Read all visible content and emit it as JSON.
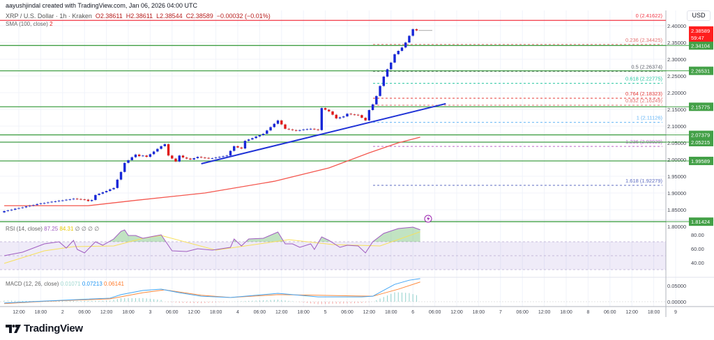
{
  "header": {
    "created_by": "aayushjindal created with TradingView.com, Jan 06, 2026 04:00 UTC",
    "symbol": "XRP / U.S. Dollar · 1h · Kraken",
    "open": "O2.38611",
    "high": "H2.38611",
    "low": "L2.38544",
    "close": "C2.38589",
    "change": "−0.00032 (−0.01%)",
    "sma_label": "SMA (100, close)",
    "sma_value": "2"
  },
  "currency_button": "USD",
  "brand": {
    "name": "TradingView",
    "logo": "TV"
  },
  "colors": {
    "up_candle": "#1727d8",
    "down_candle": "#e01818",
    "sma": "#f4574f",
    "trendline": "#1f32d6",
    "support": "#43a047",
    "last_price": "#ff1e1e",
    "rsi": "#a05cc0",
    "rsi_ma": "#f7e05a",
    "macd": "#42a5f5",
    "signal": "#ff8a3d"
  },
  "chart_data": {
    "type": "candlestick",
    "interval": "1h",
    "first_bar": "1 08:00",
    "closes": [
      1.846,
      1.848,
      1.85,
      1.853,
      1.855,
      1.857,
      1.86,
      1.862,
      1.864,
      1.867,
      1.869,
      1.87,
      1.872,
      1.874,
      1.875,
      1.877,
      1.878,
      1.88,
      1.881,
      1.883,
      1.882,
      1.881,
      1.88,
      1.876,
      1.879,
      1.894,
      1.898,
      1.902,
      1.906,
      1.911,
      1.915,
      1.94,
      1.963,
      1.99,
      1.998,
      2.007,
      2.015,
      2.01,
      2.012,
      2.008,
      2.016,
      2.024,
      2.032,
      2.04,
      2.046,
      2.012,
      2.003,
      1.994,
      2.012,
      2.006,
      2.003,
      2.0,
      2.004,
      2.008,
      2.006,
      2.005,
      2.004,
      2.004,
      2.006,
      2.008,
      2.01,
      2.012,
      2.026,
      2.04,
      2.036,
      2.033,
      2.056,
      2.06,
      2.064,
      2.069,
      2.073,
      2.077,
      2.087,
      2.097,
      2.107,
      2.117,
      2.105,
      2.092,
      2.09,
      2.088,
      2.086,
      2.088,
      2.09,
      2.091,
      2.092,
      2.09,
      2.088,
      2.154,
      2.149,
      2.144,
      2.134,
      2.123,
      2.126,
      2.129,
      2.137,
      2.135,
      2.134,
      2.133,
      2.125,
      2.117,
      2.148,
      2.165,
      2.19,
      2.22,
      2.248,
      2.27,
      2.29,
      2.315,
      2.325,
      2.335,
      2.35,
      2.37,
      2.39,
      2.386
    ],
    "first_open": 1.842,
    "last_price": {
      "value": "2.38589",
      "countdown": "59:47"
    },
    "sma_100": [
      [
        "1 08:00",
        1.862
      ],
      [
        "2 07:00",
        1.862
      ],
      [
        "2 20:00",
        1.878
      ],
      [
        "3 15:00",
        1.9
      ],
      [
        "4 10:00",
        1.935
      ],
      [
        "5 01:00",
        1.975
      ],
      [
        "5 12:00",
        2.02
      ],
      [
        "5 20:00",
        2.05
      ],
      [
        "6 02:00",
        2.067
      ]
    ],
    "trendline": [
      [
        "3 14:00",
        1.9875
      ],
      [
        "6 09:00",
        2.167
      ]
    ],
    "support_levels": [
      "2.34104",
      "2.26531",
      "2.15775",
      "2.07379",
      "2.05215",
      "1.99589",
      "1.81424"
    ],
    "fib_levels": [
      {
        "label": "0 (2.41622)",
        "price": 2.41622,
        "color": "#f23645",
        "solid": true
      },
      {
        "label": "0.236 (2.34425)",
        "price": 2.34425,
        "color": "#e57373"
      },
      {
        "label": "0.5 (2.26374)",
        "price": 2.26374,
        "color": "#5d606b"
      },
      {
        "label": "0.618 (2.22775)",
        "price": 2.22775,
        "color": "#26c6a0"
      },
      {
        "label": "0.764 (2.18323)",
        "price": 2.18323,
        "color": "#e53935"
      },
      {
        "label": "0.832 (2.16249)",
        "price": 2.16249,
        "color": "#e57373"
      },
      {
        "label": "1 (2.11126)",
        "price": 2.11126,
        "color": "#64b5f6"
      },
      {
        "label": "1.236 (2.03929)",
        "price": 2.03929,
        "color": "#ba68c8"
      },
      {
        "label": "1.618 (1.92279)",
        "price": 1.92279,
        "color": "#5c6bc0"
      }
    ],
    "price_axis": [
      "2.40000",
      "2.35000",
      "2.30000",
      "2.25000",
      "2.20000",
      "2.15000",
      "2.10000",
      "2.05000",
      "2.00000",
      "1.95000",
      "1.90000",
      "1.85000",
      "1.80000"
    ],
    "time_axis": [
      "12:00",
      "18:00",
      "2",
      "06:00",
      "12:00",
      "18:00",
      "3",
      "06:00",
      "12:00",
      "18:00",
      "4",
      "06:00",
      "12:00",
      "18:00",
      "5",
      "06:00",
      "12:00",
      "18:00",
      "6",
      "06:00",
      "12:00",
      "18:00",
      "7",
      "06:00",
      "12:00",
      "18:00",
      "8",
      "06:00",
      "12:00",
      "18:00",
      "9"
    ],
    "rsi": {
      "title": "RSI (14, close)",
      "value": "87.25",
      "ma_value": "84.31",
      "extra": "∅ ∅ ∅ ∅",
      "axis": [
        "80.00",
        "60.00",
        "40.00"
      ],
      "band": [
        30,
        70
      ],
      "line": [
        [
          "1 08:00",
          50
        ],
        [
          "1 13:00",
          55
        ],
        [
          "1 19:00",
          67
        ],
        [
          "1 23:00",
          70
        ],
        [
          "2 01:00",
          61
        ],
        [
          "2 03:00",
          72
        ],
        [
          "2 04:00",
          59
        ],
        [
          "2 06:00",
          54
        ],
        [
          "2 09:00",
          70
        ],
        [
          "2 11:00",
          65
        ],
        [
          "2 14:00",
          74
        ],
        [
          "2 16:00",
          85
        ],
        [
          "2 17:00",
          87
        ],
        [
          "2 18:00",
          79
        ],
        [
          "2 20:00",
          79
        ],
        [
          "2 22:00",
          75
        ],
        [
          "3 01:00",
          78
        ],
        [
          "3 03:00",
          80
        ],
        [
          "3 06:00",
          57
        ],
        [
          "3 10:00",
          56
        ],
        [
          "3 13:00",
          60
        ],
        [
          "3 17:00",
          58
        ],
        [
          "3 22:00",
          62
        ],
        [
          "3 23:00",
          74
        ],
        [
          "4 01:00",
          64
        ],
        [
          "4 03:00",
          74
        ],
        [
          "4 07:00",
          75
        ],
        [
          "4 11:00",
          84
        ],
        [
          "4 13:00",
          67
        ],
        [
          "4 15:00",
          67
        ],
        [
          "4 17:00",
          62
        ],
        [
          "4 20:00",
          67
        ],
        [
          "4 21:00",
          59
        ],
        [
          "4 23:00",
          77
        ],
        [
          "5 01:00",
          72
        ],
        [
          "5 04:00",
          62
        ],
        [
          "5 06:00",
          65
        ],
        [
          "5 09:00",
          64
        ],
        [
          "5 11:00",
          54
        ],
        [
          "5 13:00",
          70
        ],
        [
          "5 16:00",
          82
        ],
        [
          "5 20:00",
          89
        ],
        [
          "6 00:00",
          91
        ],
        [
          "6 02:00",
          87.25
        ]
      ],
      "ma": [
        [
          "1 08:00",
          39
        ],
        [
          "1 19:00",
          57
        ],
        [
          "2 03:00",
          63
        ],
        [
          "2 14:00",
          64
        ],
        [
          "2 22:00",
          75
        ],
        [
          "3 03:00",
          79
        ],
        [
          "3 18:00",
          58
        ],
        [
          "4 14:00",
          73
        ],
        [
          "5 02:00",
          66
        ],
        [
          "5 15:00",
          64
        ],
        [
          "6 02:00",
          84.31
        ]
      ]
    },
    "macd": {
      "title": "MACD (12, 26, close)",
      "hist_value": "0.01071",
      "macd_value": "0.07213",
      "signal_value": "0.06141",
      "axis": [
        "0.05000",
        "0.00000"
      ],
      "macd_line": [
        [
          "1 08:00",
          -0.004
        ],
        [
          "1 19:00",
          0.002
        ],
        [
          "2 13:00",
          0.011
        ],
        [
          "2 16:00",
          0.022
        ],
        [
          "2 22:00",
          0.035
        ],
        [
          "3 03:00",
          0.039
        ],
        [
          "3 08:00",
          0.028
        ],
        [
          "3 14:00",
          0.017
        ],
        [
          "3 22:00",
          0.013
        ],
        [
          "4 11:00",
          0.026
        ],
        [
          "4 22:00",
          0.015
        ],
        [
          "5 10:00",
          0.015
        ],
        [
          "5 13:00",
          0.017
        ],
        [
          "5 19:00",
          0.054
        ],
        [
          "5 23:00",
          0.067
        ],
        [
          "6 02:00",
          0.07213
        ]
      ],
      "signal_line": [
        [
          "1 08:00",
          -0.006
        ],
        [
          "1 19:00",
          0.001
        ],
        [
          "2 13:00",
          0.009
        ],
        [
          "2 22:00",
          0.028
        ],
        [
          "3 04:00",
          0.037
        ],
        [
          "3 14:00",
          0.02
        ],
        [
          "3 22:00",
          0.013
        ],
        [
          "4 11:00",
          0.022
        ],
        [
          "4 22:00",
          0.02
        ],
        [
          "5 13:00",
          0.017
        ],
        [
          "5 20:00",
          0.039
        ],
        [
          "6 02:00",
          0.06141
        ]
      ]
    }
  }
}
